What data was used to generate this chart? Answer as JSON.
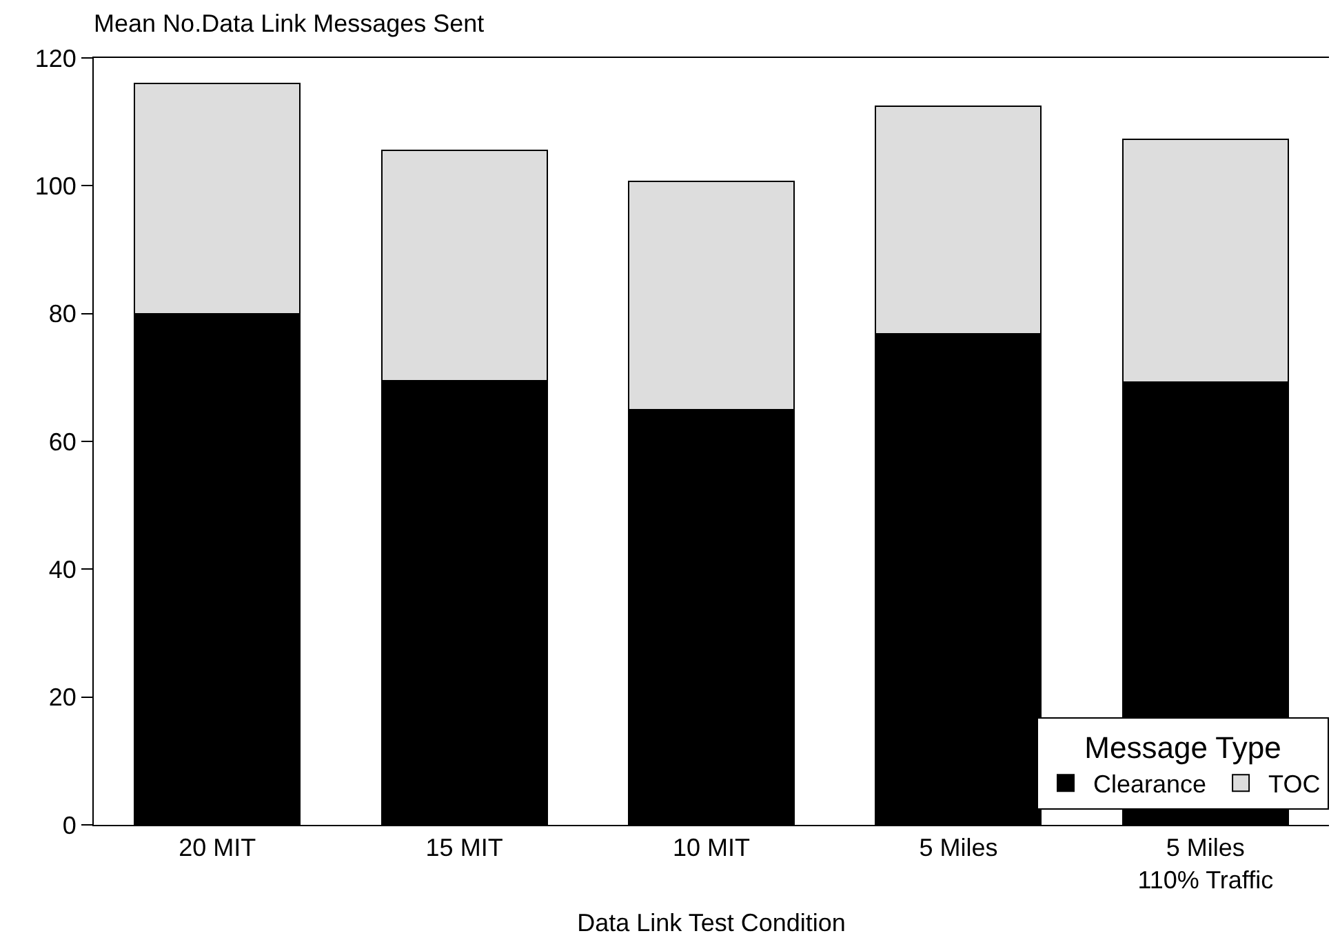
{
  "chart_data": {
    "type": "bar",
    "title": "Mean No.Data Link Messages Sent",
    "xlabel": "Data Link Test Condition",
    "legend_title": "Message Type",
    "categories": [
      "20 MIT",
      "15 MIT",
      "10 MIT",
      "5 Miles",
      "5 Miles\n110% Traffic"
    ],
    "series": [
      {
        "name": "Clearance",
        "color": "#000000",
        "values": [
          80,
          69.5,
          65,
          76.8,
          69.3
        ]
      },
      {
        "name": "TOC",
        "color": "#dddddd",
        "values": [
          36,
          36,
          35.7,
          35.7,
          38
        ]
      }
    ],
    "stacked": true,
    "ylim": [
      0,
      120
    ],
    "yticks": [
      0,
      20,
      40,
      60,
      80,
      100,
      120
    ],
    "legend": "bottom right"
  }
}
